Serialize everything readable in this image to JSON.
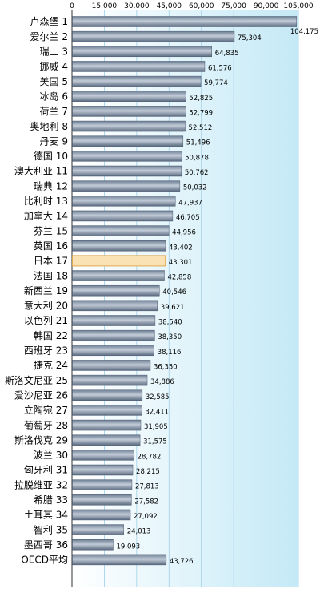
{
  "chart_data": {
    "type": "bar",
    "orientation": "horizontal",
    "xlim": [
      0,
      105000
    ],
    "x_ticks": [
      "0",
      "15,000",
      "30,000",
      "45,000",
      "60,000",
      "75,000",
      "90,000",
      "105,000"
    ],
    "x_tick_values": [
      0,
      15000,
      30000,
      45000,
      60000,
      75000,
      90000,
      105000
    ],
    "categories": [
      "卢森堡 1",
      "爱尔兰 2",
      "瑞士 3",
      "挪威 4",
      "美国 5",
      "冰岛 6",
      "荷兰 7",
      "奥地利 8",
      "丹麦 9",
      "德国 10",
      "澳大利亚 11",
      "瑞典 12",
      "比利时 13",
      "加拿大 14",
      "芬兰 15",
      "英国 16",
      "日本 17",
      "法国 18",
      "新西兰 19",
      "意大利 20",
      "以色列 21",
      "韩国 22",
      "西班牙 23",
      "捷克 24",
      "斯洛文尼亚 25",
      "爱沙尼亚 26",
      "立陶宛 27",
      "葡萄牙 28",
      "斯洛伐克 29",
      "波兰 30",
      "匈牙利 31",
      "拉脱维亚 32",
      "希腊 33",
      "土耳其 34",
      "智利 35",
      "墨西哥 36",
      "OECD平均"
    ],
    "values": [
      104175,
      75304,
      64835,
      61576,
      59774,
      52825,
      52799,
      52512,
      51496,
      50878,
      50762,
      50032,
      47937,
      46705,
      44956,
      43402,
      43301,
      42858,
      40546,
      39621,
      38540,
      38350,
      38116,
      36350,
      34886,
      32585,
      32411,
      31905,
      31575,
      28782,
      28215,
      27813,
      27582,
      27092,
      24013,
      19093,
      43726
    ],
    "value_labels": [
      "104,175",
      "75,304",
      "64,835",
      "61,576",
      "59,774",
      "52,825",
      "52,799",
      "52,512",
      "51,496",
      "50,878",
      "50,762",
      "50,032",
      "47,937",
      "46,705",
      "44,956",
      "43,402",
      "43,301",
      "42,858",
      "40,546",
      "39,621",
      "38,540",
      "38,350",
      "38,116",
      "36,350",
      "34,886",
      "32,585",
      "32,411",
      "31,905",
      "31,575",
      "28,782",
      "28,215",
      "27,813",
      "27,582",
      "27,092",
      "24,013",
      "19,093",
      "43,726"
    ],
    "highlight_category": "日本 17",
    "grid": true,
    "colors": {
      "bar_top": "#6e7f95",
      "bar_mid": "#c3ccd8",
      "bar_bottom": "#5a6a80",
      "highlight_fill": "#fbe2b4",
      "highlight_stroke": "#e0a950",
      "grid": "#9fd0e8",
      "background_start": "#ffffff",
      "background_end": "#c4e9f6"
    }
  }
}
